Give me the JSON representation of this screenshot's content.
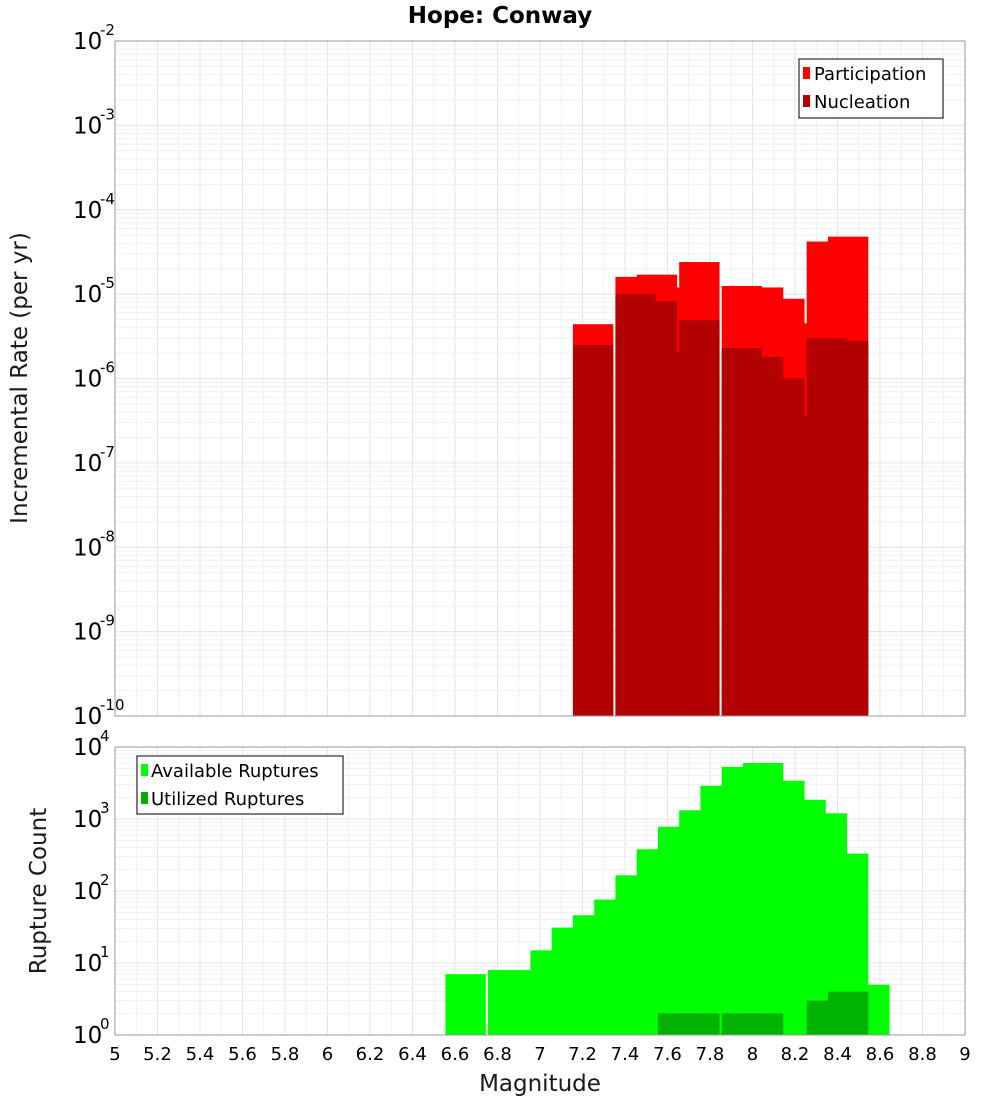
{
  "colors": {
    "participation": "#ff0000",
    "nucleation": "#b30000",
    "available": "#00ff00",
    "utilized": "#00b300"
  },
  "chart_data": [
    {
      "type": "bar",
      "title": "Hope: Conway",
      "xlabel": "Magnitude",
      "ylabel": "Incremental Rate (per yr)",
      "yscale": "log",
      "ylim": [
        1e-10,
        0.01
      ],
      "xlim": [
        5,
        9
      ],
      "grid": true,
      "legend_position": "top-right",
      "ytick_exponents": [
        "-10",
        "-9",
        "-8",
        "-7",
        "-6",
        "-5",
        "-4",
        "-3",
        "-2"
      ],
      "x": [
        7.25,
        7.45,
        7.55,
        7.65,
        7.75,
        7.95,
        8.05,
        8.15,
        8.25,
        8.35,
        8.45
      ],
      "series": [
        {
          "name": "Participation",
          "values": [
            4.4e-06,
            1.6e-05,
            1.7e-05,
            1.2e-05,
            2.4e-05,
            1.25e-05,
            1.2e-05,
            8.8e-06,
            4.5e-06,
            4.2e-05,
            4.8e-05
          ]
        },
        {
          "name": "Nucleation",
          "values": [
            2.5e-06,
            1e-05,
            8.2e-06,
            2.1e-06,
            4.9e-06,
            2.3e-06,
            1.8e-06,
            1e-06,
            3.6e-07,
            3e-06,
            2.8e-06
          ]
        }
      ]
    },
    {
      "type": "bar",
      "title": "",
      "xlabel": "Magnitude",
      "ylabel": "Rupture Count",
      "yscale": "log",
      "ylim": [
        1,
        10000
      ],
      "xlim": [
        5,
        9
      ],
      "grid": true,
      "legend_position": "top-left",
      "ytick_exponents": [
        "0",
        "1",
        "2",
        "3",
        "4"
      ],
      "x": [
        6.65,
        6.85,
        6.95,
        7.05,
        7.15,
        7.25,
        7.35,
        7.45,
        7.55,
        7.65,
        7.75,
        7.85,
        7.95,
        8.05,
        8.15,
        8.25,
        8.35,
        8.45,
        8.55
      ],
      "series": [
        {
          "name": "Available Ruptures",
          "values": [
            7,
            8,
            8,
            15,
            31,
            46,
            76,
            165,
            380,
            780,
            1320,
            2900,
            5300,
            6000,
            3400,
            1850,
            1200,
            330,
            5
          ]
        },
        {
          "name": "Utilized Ruptures",
          "values": [
            0,
            0,
            0,
            0,
            0,
            1,
            0,
            1,
            1,
            2,
            2,
            0,
            2,
            2,
            1,
            1,
            3,
            4,
            0
          ]
        }
      ]
    }
  ],
  "xticks": [
    "5",
    "5.2",
    "5.4",
    "5.6",
    "5.8",
    "6",
    "6.2",
    "6.4",
    "6.6",
    "6.8",
    "7",
    "7.2",
    "7.4",
    "7.6",
    "7.8",
    "8",
    "8.2",
    "8.4",
    "8.6",
    "8.8",
    "9"
  ]
}
